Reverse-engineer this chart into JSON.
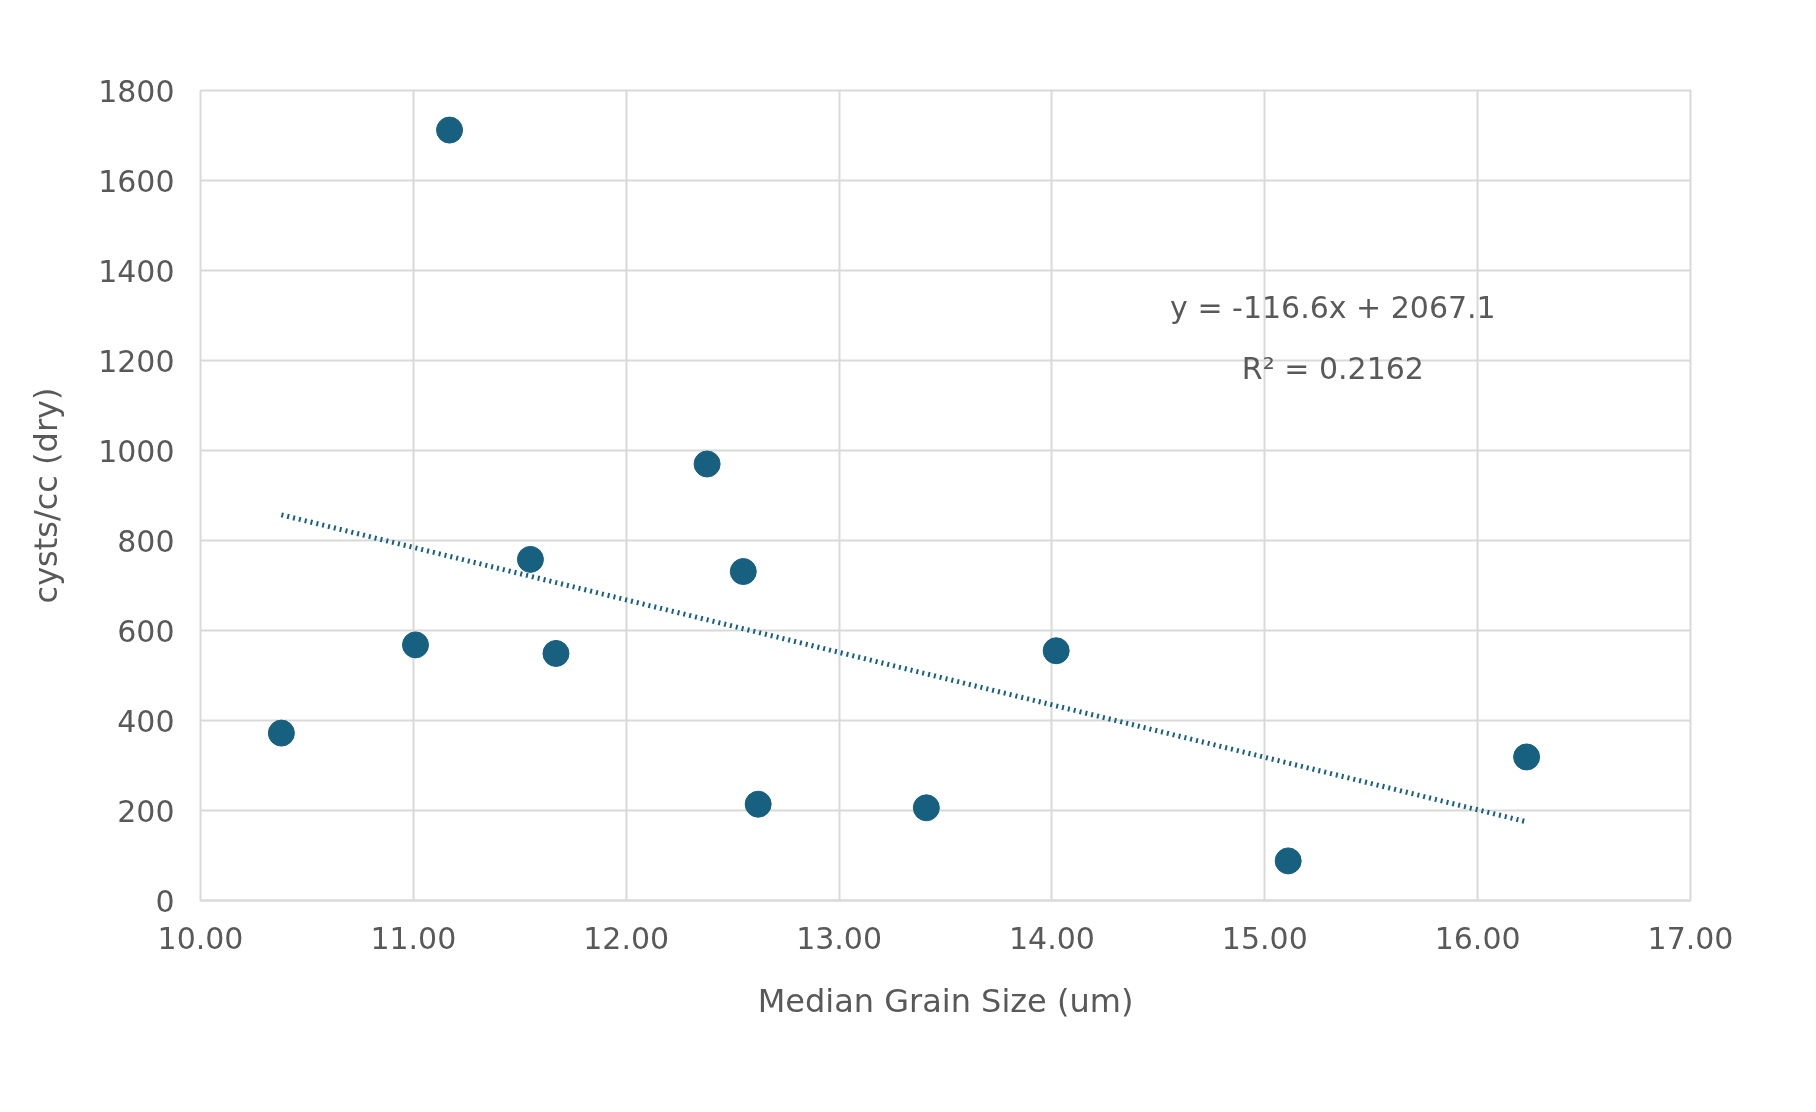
{
  "chart_data": {
    "type": "scatter",
    "xlabel": "Median Grain Size (um)",
    "ylabel": "cysts/cc (dry)",
    "xlim": [
      10,
      17
    ],
    "xticks": [
      {
        "value": 10,
        "label": "10.00"
      },
      {
        "value": 11,
        "label": "11.00"
      },
      {
        "value": 12,
        "label": "12.00"
      },
      {
        "value": 13,
        "label": "13.00"
      },
      {
        "value": 14,
        "label": "14.00"
      },
      {
        "value": 15,
        "label": "15.00"
      },
      {
        "value": 16,
        "label": "16.00"
      },
      {
        "value": 17,
        "label": "17.00"
      }
    ],
    "ylim": [
      0,
      1800
    ],
    "yticks": [
      0,
      200,
      400,
      600,
      800,
      1000,
      1200,
      1400,
      1600,
      1800
    ],
    "grid": true,
    "annotations": [
      "y = -116.6x + 2067.1",
      "R² = 0.2162"
    ],
    "series": [
      {
        "color": "#17607f",
        "marker": "circle",
        "x": [
          10.38,
          11.01,
          11.17,
          11.55,
          11.67,
          12.38,
          12.55,
          12.62,
          13.41,
          14.02,
          15.11,
          16.23
        ],
        "values": [
          372,
          568,
          1712,
          758,
          549,
          970,
          731,
          214,
          206,
          555,
          88,
          319
        ]
      },
      {
        "type": "line",
        "color": "#17607f",
        "line_style": "dotted",
        "x": [
          10.38,
          16.22
        ],
        "values": [
          857,
          176
        ]
      }
    ]
  }
}
